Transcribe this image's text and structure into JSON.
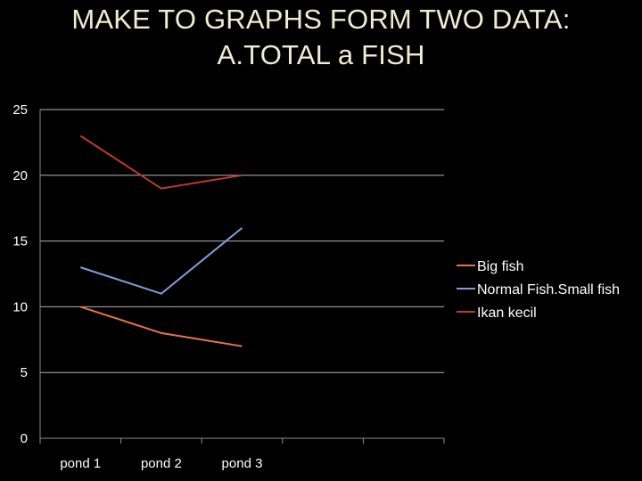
{
  "slide": {
    "title_line1": "MAKE TO GRAPHS FORM TWO DATA:",
    "title_line2": "A.TOTAL a FISH"
  },
  "chart_data": {
    "type": "line",
    "title": "",
    "xlabel": "",
    "ylabel": "",
    "categories": [
      "pond 1",
      "pond 2",
      "pond 3"
    ],
    "empty_category_slots": 2,
    "ylim": [
      0,
      25
    ],
    "yticks": [
      0,
      5,
      10,
      15,
      20,
      25
    ],
    "grid": true,
    "legend_position": "right",
    "series": [
      {
        "name": "Big fish",
        "values": [
          10,
          8,
          7
        ],
        "color": "#e8734a"
      },
      {
        "name": "Normal Fish.Small fish",
        "values": [
          13,
          11,
          16
        ],
        "color": "#7f9fdc"
      },
      {
        "name": "Ikan kecil",
        "values": [
          23,
          19,
          20
        ],
        "color": "#c0392b"
      }
    ],
    "axis_color": "#8c8c8c",
    "grid_color": "#b3b3b3",
    "text_color": "#ffffff"
  }
}
